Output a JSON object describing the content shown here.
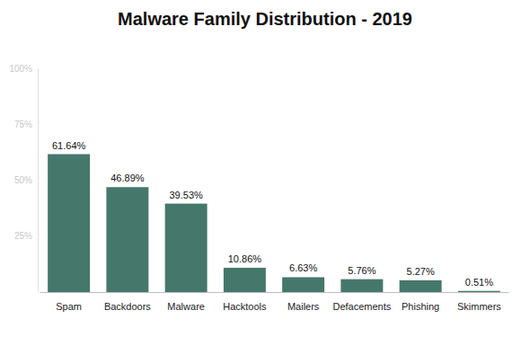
{
  "chart_data": {
    "type": "bar",
    "title": "Malware Family Distribution - 2019",
    "categories": [
      "Spam",
      "Backdoors",
      "Malware",
      "Hacktools",
      "Mailers",
      "Defacements",
      "Phishing",
      "Skimmers"
    ],
    "values": [
      61.64,
      46.89,
      39.53,
      10.86,
      6.63,
      5.76,
      5.27,
      0.51
    ],
    "value_labels": [
      "61.64%",
      "46.89%",
      "39.53%",
      "10.86%",
      "6.63%",
      "5.76%",
      "5.27%",
      "0.51%"
    ],
    "data_labels": true,
    "color": "#45786b",
    "ylim": [
      0,
      100
    ],
    "yticks": [
      {
        "value": 25,
        "label": "25%"
      },
      {
        "value": 50,
        "label": "50%"
      },
      {
        "value": 75,
        "label": "75%"
      },
      {
        "value": 100,
        "label": "100%"
      }
    ],
    "grid": false
  }
}
